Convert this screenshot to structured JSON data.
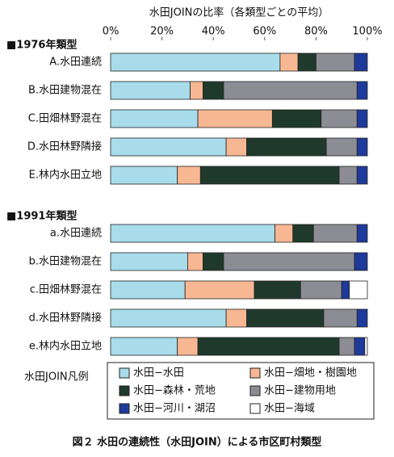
{
  "chart_data": {
    "type": "bar",
    "orientation": "horizontal",
    "stacked": true,
    "title": "水田JOINの比率（各類型ごとの平均）",
    "xlim": [
      0,
      100
    ],
    "xticks": [
      {
        "value": 0,
        "label": "0%"
      },
      {
        "value": 20,
        "label": "20%"
      },
      {
        "value": 40,
        "label": "40%"
      },
      {
        "value": 60,
        "label": "60%"
      },
      {
        "value": 80,
        "label": "80%"
      },
      {
        "value": 100,
        "label": "100%"
      }
    ],
    "groups": [
      {
        "name": "■1976年類型",
        "categories": [
          "A.水田連続",
          "B.水田建物混在",
          "C.田畑林野混在",
          "D.水田林野隣接",
          "E.林内水田立地"
        ]
      },
      {
        "name": "■1991年類型",
        "categories": [
          "a.水田連続",
          "b.水田建物混在",
          "c.田畑林野混在",
          "d.水田林野隣接",
          "e.林内水田立地"
        ]
      }
    ],
    "legend_title": "水田JOIN凡例",
    "series": [
      {
        "name": "水田−水田",
        "color": "#a8dcea",
        "values": [
          66,
          31,
          34,
          45,
          26,
          64,
          30,
          29,
          45,
          26
        ]
      },
      {
        "name": "水田−畑地・樹園地",
        "color": "#f8b793",
        "values": [
          7,
          5,
          29,
          8,
          9,
          7,
          6,
          27,
          8,
          8
        ]
      },
      {
        "name": "水田−森林・荒地",
        "color": "#1f3a2c",
        "values": [
          7,
          8,
          19,
          31,
          54,
          8,
          8,
          18,
          30,
          55
        ]
      },
      {
        "name": "水田−建物用地",
        "color": "#8c8c94",
        "values": [
          15,
          52,
          14,
          12,
          7,
          17,
          51,
          16,
          13,
          6
        ]
      },
      {
        "name": "水田−河川・湖沼",
        "color": "#1e3a9a",
        "values": [
          5,
          4,
          4,
          4,
          4,
          4,
          5,
          3,
          4,
          4
        ]
      },
      {
        "name": "水田−海域",
        "color": "#ffffff",
        "values": [
          0,
          0,
          0,
          0,
          0,
          0,
          0,
          7,
          0,
          1
        ]
      }
    ],
    "caption": "図２ 水田の連続性（水田JOIN）による市区町村類型"
  }
}
